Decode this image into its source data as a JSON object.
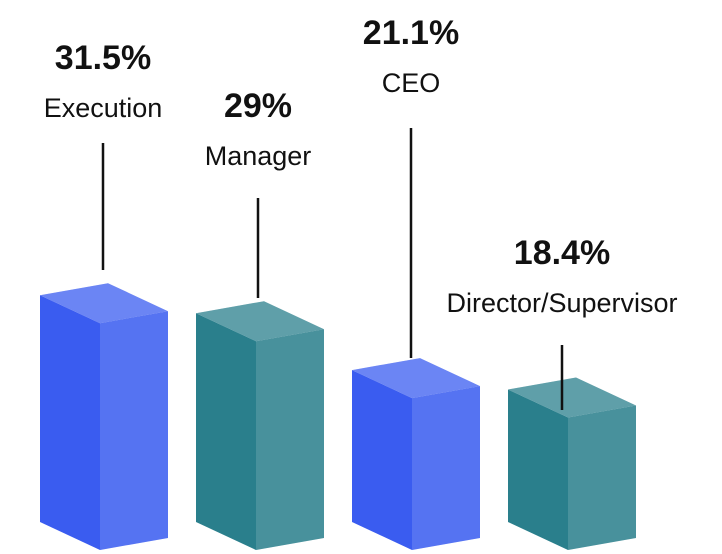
{
  "chart_data": {
    "type": "bar3d",
    "categories": [
      "Execution",
      "Manager",
      "CEO",
      "Director/Supervisor"
    ],
    "values": [
      31.5,
      29,
      21.1,
      18.4
    ],
    "value_labels": [
      "31.5%",
      "29%",
      "21.1%",
      "18.4%"
    ],
    "colors": [
      "#3a5cf0",
      "#2a7f8c",
      "#3a5cf0",
      "#2a7f8c"
    ]
  }
}
